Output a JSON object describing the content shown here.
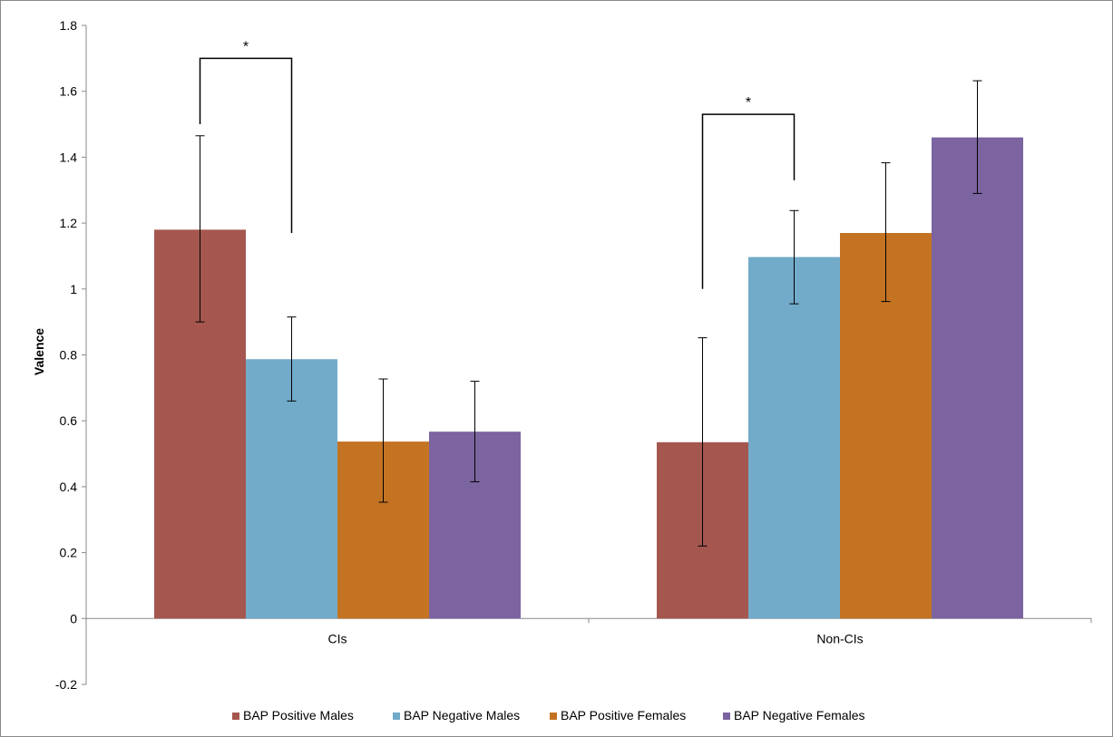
{
  "chart_data": {
    "type": "bar",
    "title": "",
    "xlabel": "",
    "ylabel": "Valence",
    "ylim": [
      -0.2,
      1.8
    ],
    "yticks": [
      1.8,
      1.6,
      1.4,
      1.2,
      1,
      0.8,
      0.6,
      0.4,
      0.2,
      0,
      -0.2
    ],
    "ytick_labels": [
      "1.8",
      "1.6",
      "1.4",
      "1.2",
      "1",
      "0.8",
      "0.6",
      "0.4",
      "0.2",
      "0",
      "-0.2"
    ],
    "grid": false,
    "legend_position": "bottom",
    "categories": [
      "CIs",
      "Non-CIs"
    ],
    "series": [
      {
        "name": "BAP Positive Males",
        "color": "#a5574f",
        "values": [
          1.18,
          0.535
        ],
        "err_low": [
          0.9,
          0.22
        ],
        "err_high": [
          1.465,
          0.852
        ]
      },
      {
        "name": "BAP Negative Males",
        "color": "#72abc9",
        "values": [
          0.787,
          1.097
        ],
        "err_low": [
          0.66,
          0.955
        ],
        "err_high": [
          0.915,
          1.238
        ]
      },
      {
        "name": "BAP Positive Females",
        "color": "#c47323",
        "values": [
          0.537,
          1.17
        ],
        "err_low": [
          0.353,
          0.962
        ],
        "err_high": [
          0.727,
          1.383
        ]
      },
      {
        "name": "BAP Negative Females",
        "color": "#7b64a0",
        "values": [
          0.567,
          1.46
        ],
        "err_low": [
          0.415,
          1.29
        ],
        "err_high": [
          0.72,
          1.632
        ]
      }
    ],
    "annotations": [
      {
        "label": "*",
        "category_index": 0,
        "from_series": 0,
        "to_series": 1,
        "left_base": 1.5,
        "right_base": 1.17,
        "top": 1.7
      },
      {
        "label": "*",
        "category_index": 1,
        "from_series": 0,
        "to_series": 1,
        "left_base": 1.0,
        "right_base": 1.33,
        "top": 1.53
      }
    ]
  }
}
